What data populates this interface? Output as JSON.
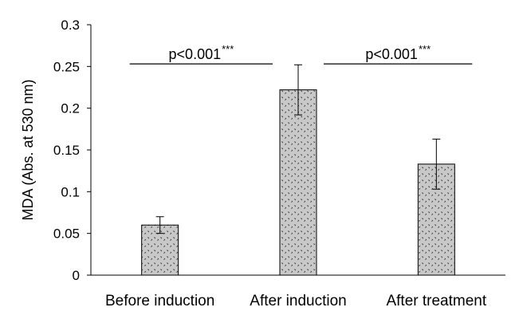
{
  "chart_data": {
    "type": "bar",
    "title": "",
    "xlabel": "",
    "ylabel": "MDA (Abs. at 530 nm)",
    "ylim": [
      0,
      0.3
    ],
    "yticks": [
      "0",
      "0.05",
      "0.1",
      "0.15",
      "0.2",
      "0.25",
      "0.3"
    ],
    "ytick_values": [
      0,
      0.05,
      0.1,
      0.15,
      0.2,
      0.25,
      0.3
    ],
    "categories": [
      "Before induction",
      "After induction",
      "After treatment"
    ],
    "values": [
      0.06,
      0.222,
      0.133
    ],
    "errors": [
      0.01,
      0.03,
      0.03
    ],
    "grid": false,
    "bar_pattern": "dotted",
    "bar_color": "#c8c8c8",
    "significance": [
      {
        "from": 0,
        "to": 1,
        "text": "p<0.001",
        "stars": "***",
        "y": 0.255
      },
      {
        "from": 1,
        "to": 2,
        "text": "p<0.001",
        "stars": "***",
        "y": 0.255
      }
    ]
  }
}
